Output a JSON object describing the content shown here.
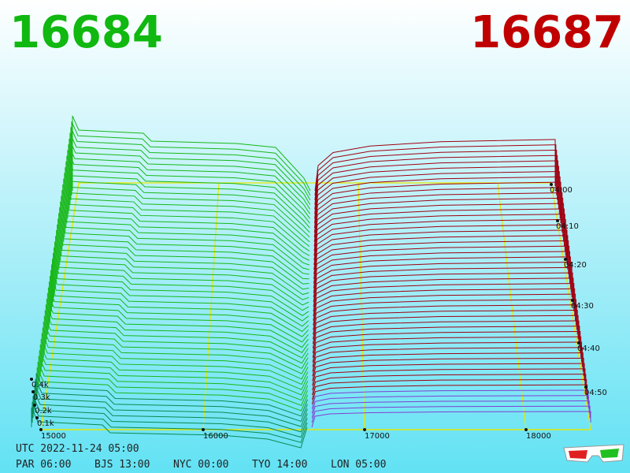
{
  "bid": "16684",
  "ask": "16687",
  "price_labels": [
    "15000",
    "16000",
    "17000",
    "18000"
  ],
  "time_labels": [
    "04:00",
    "04:10",
    "04:20",
    "04:30",
    "04:40",
    "04:50"
  ],
  "depth_labels": [
    "0.4k",
    "0.3k",
    "0.2k",
    "0.1k"
  ],
  "footer": {
    "utc": "UTC 2022-11-24 05:00",
    "zones": [
      "PAR 06:00",
      "BJS 13:00",
      "NYC 00:00",
      "TYO 14:00",
      "LON 05:00"
    ]
  }
}
